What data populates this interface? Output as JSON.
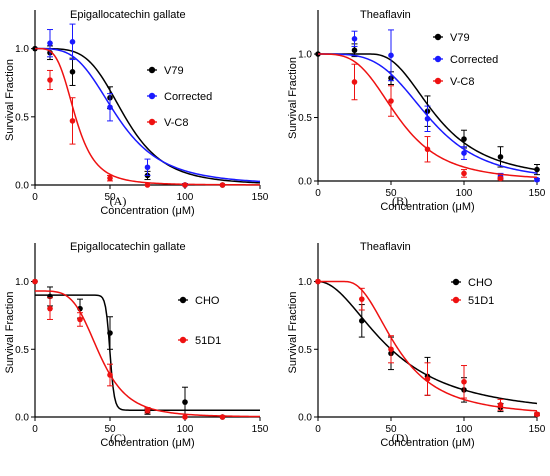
{
  "chart_data": [
    {
      "panel_label": "(A)",
      "type": "line",
      "title": "Epigallocatechin gallate",
      "xlabel": "Concentration (μM)",
      "ylabel": "Survival Fraction",
      "xlim": [
        0,
        150
      ],
      "ylim": [
        0,
        1.1
      ],
      "xticks": [
        0,
        50,
        100,
        150
      ],
      "yticks": [
        0.0,
        0.5,
        1.0
      ],
      "legend": "right",
      "series": [
        {
          "name": "V79",
          "color": "#000000",
          "points": [
            {
              "x": 0,
              "y": 1.0,
              "err": 0.0
            },
            {
              "x": 10,
              "y": 0.97,
              "err": 0.05
            },
            {
              "x": 25,
              "y": 0.83,
              "err": 0.1
            },
            {
              "x": 50,
              "y": 0.64,
              "err": 0.08
            },
            {
              "x": 75,
              "y": 0.07,
              "err": 0.03
            },
            {
              "x": 100,
              "y": 0.0,
              "err": 0.01
            },
            {
              "x": 125,
              "y": 0.0,
              "err": 0.0
            }
          ],
          "curve": {
            "top": 1.0,
            "bottom": 0.0,
            "ec50": 60,
            "hill": 4.5
          }
        },
        {
          "name": "Corrected",
          "color": "#1a1aff",
          "points": [
            {
              "x": 10,
              "y": 1.04,
              "err": 0.1
            },
            {
              "x": 25,
              "y": 1.05,
              "err": 0.13
            },
            {
              "x": 50,
              "y": 0.57,
              "err": 0.1
            },
            {
              "x": 75,
              "y": 0.13,
              "err": 0.06
            },
            {
              "x": 100,
              "y": 0.0,
              "err": 0.01
            }
          ],
          "curve": {
            "top": 1.0,
            "bottom": 0.0,
            "ec50": 55,
            "hill": 3.6
          }
        },
        {
          "name": "V-C8",
          "color": "#ee1111",
          "points": [
            {
              "x": 10,
              "y": 0.77,
              "err": 0.07
            },
            {
              "x": 25,
              "y": 0.47,
              "err": 0.17
            },
            {
              "x": 50,
              "y": 0.05,
              "err": 0.02
            },
            {
              "x": 75,
              "y": 0.0,
              "err": 0.0
            },
            {
              "x": 100,
              "y": 0.0,
              "err": 0.0
            },
            {
              "x": 125,
              "y": 0.0,
              "err": 0.0
            }
          ],
          "curve": {
            "top": 1.0,
            "bottom": 0.0,
            "ec50": 27,
            "hill": 4.0
          }
        }
      ]
    },
    {
      "panel_label": "(B)",
      "type": "line",
      "title": "Theaflavin",
      "xlabel": "Concentration (μM)",
      "ylabel": "Survival Fraction",
      "xlim": [
        0,
        150
      ],
      "ylim": [
        0,
        1.15
      ],
      "xticks": [
        0,
        50,
        100,
        150
      ],
      "yticks": [
        0.0,
        0.5,
        1.0
      ],
      "legend": "top-right",
      "series": [
        {
          "name": "V79",
          "color": "#000000",
          "points": [
            {
              "x": 0,
              "y": 1.0,
              "err": 0.0
            },
            {
              "x": 25,
              "y": 1.03,
              "err": 0.05
            },
            {
              "x": 50,
              "y": 0.81,
              "err": 0.05
            },
            {
              "x": 75,
              "y": 0.55,
              "err": 0.12
            },
            {
              "x": 100,
              "y": 0.33,
              "err": 0.07
            },
            {
              "x": 125,
              "y": 0.19,
              "err": 0.08
            },
            {
              "x": 150,
              "y": 0.09,
              "err": 0.04
            }
          ],
          "curve": {
            "top": 1.0,
            "bottom": 0.0,
            "ec50": 82,
            "hill": 2.6,
            "plateau_to": 35
          }
        },
        {
          "name": "Corrected",
          "color": "#1a1aff",
          "points": [
            {
              "x": 25,
              "y": 1.12,
              "err": 0.06
            },
            {
              "x": 50,
              "y": 0.99,
              "err": 0.2
            },
            {
              "x": 75,
              "y": 0.49,
              "err": 0.1
            },
            {
              "x": 100,
              "y": 0.22,
              "err": 0.05
            },
            {
              "x": 125,
              "y": 0.04,
              "err": 0.02
            },
            {
              "x": 150,
              "y": 0.01,
              "err": 0.01
            }
          ],
          "curve": {
            "top": 1.0,
            "bottom": 0.0,
            "ec50": 76,
            "hill": 4.0
          }
        },
        {
          "name": "V-C8",
          "color": "#ee1111",
          "points": [
            {
              "x": 25,
              "y": 0.78,
              "err": 0.14
            },
            {
              "x": 50,
              "y": 0.63,
              "err": 0.12
            },
            {
              "x": 75,
              "y": 0.25,
              "err": 0.1
            },
            {
              "x": 100,
              "y": 0.06,
              "err": 0.03
            },
            {
              "x": 125,
              "y": 0.02,
              "err": 0.01
            }
          ],
          "curve": {
            "top": 1.0,
            "bottom": 0.0,
            "ec50": 55,
            "hill": 3.5
          }
        }
      ]
    },
    {
      "panel_label": "(C)",
      "type": "line",
      "title": "Epigallocatechin gallate",
      "xlabel": "Concentration (μM)",
      "ylabel": "Survival Fraction",
      "xlim": [
        0,
        150
      ],
      "ylim": [
        0,
        1.1
      ],
      "xticks": [
        0,
        50,
        100,
        150
      ],
      "yticks": [
        0.0,
        0.5,
        1.0
      ],
      "legend": "right",
      "series": [
        {
          "name": "CHO",
          "color": "#000000",
          "points": [
            {
              "x": 0,
              "y": 1.0,
              "err": 0.0
            },
            {
              "x": 10,
              "y": 0.89,
              "err": 0.07
            },
            {
              "x": 30,
              "y": 0.8,
              "err": 0.07
            },
            {
              "x": 50,
              "y": 0.62,
              "err": 0.12
            },
            {
              "x": 75,
              "y": 0.04,
              "err": 0.02
            },
            {
              "x": 100,
              "y": 0.11,
              "err": 0.11
            },
            {
              "x": 125,
              "y": 0.0,
              "err": 0.0
            }
          ],
          "curve": {
            "top": 0.9,
            "bottom": 0.05,
            "ec50": 50,
            "hill": 35
          }
        },
        {
          "name": "51D1",
          "color": "#ee1111",
          "points": [
            {
              "x": 0,
              "y": 1.0,
              "err": 0.0
            },
            {
              "x": 10,
              "y": 0.8,
              "err": 0.08
            },
            {
              "x": 30,
              "y": 0.72,
              "err": 0.05
            },
            {
              "x": 50,
              "y": 0.31,
              "err": 0.08
            },
            {
              "x": 75,
              "y": 0.05,
              "err": 0.02
            },
            {
              "x": 100,
              "y": 0.0,
              "err": 0.0
            },
            {
              "x": 125,
              "y": 0.0,
              "err": 0.0
            }
          ],
          "curve": {
            "top": 0.93,
            "bottom": 0.0,
            "ec50": 43,
            "hill": 4.5
          }
        }
      ]
    },
    {
      "panel_label": "(D)",
      "type": "line",
      "title": "Theaflavin",
      "xlabel": "Concentration (μM)",
      "ylabel": "Survival Fraction",
      "xlim": [
        0,
        150
      ],
      "ylim": [
        0,
        1.1
      ],
      "xticks": [
        0,
        50,
        100,
        150
      ],
      "yticks": [
        0.0,
        0.5,
        1.0
      ],
      "legend": "top-right",
      "series": [
        {
          "name": "CHO",
          "color": "#000000",
          "points": [
            {
              "x": 0,
              "y": 1.0,
              "err": 0.0
            },
            {
              "x": 30,
              "y": 0.71,
              "err": 0.12
            },
            {
              "x": 50,
              "y": 0.47,
              "err": 0.12
            },
            {
              "x": 75,
              "y": 0.3,
              "err": 0.14
            },
            {
              "x": 100,
              "y": 0.2,
              "err": 0.09
            },
            {
              "x": 125,
              "y": 0.07,
              "err": 0.03
            },
            {
              "x": 150,
              "y": 0.02,
              "err": 0.01
            }
          ],
          "curve": {
            "top": 1.0,
            "bottom": 0.0,
            "ec50": 50,
            "hill": 2.0
          }
        },
        {
          "name": "51D1",
          "color": "#ee1111",
          "points": [
            {
              "x": 0,
              "y": 1.0,
              "err": 0.0
            },
            {
              "x": 30,
              "y": 0.87,
              "err": 0.08
            },
            {
              "x": 50,
              "y": 0.5,
              "err": 0.1
            },
            {
              "x": 75,
              "y": 0.28,
              "err": 0.12
            },
            {
              "x": 100,
              "y": 0.26,
              "err": 0.12
            },
            {
              "x": 125,
              "y": 0.09,
              "err": 0.04
            },
            {
              "x": 150,
              "y": 0.02,
              "err": 0.01
            }
          ],
          "curve": {
            "top": 1.0,
            "bottom": 0.0,
            "ec50": 55,
            "hill": 2.4,
            "plateau_to": 18
          }
        }
      ]
    }
  ]
}
